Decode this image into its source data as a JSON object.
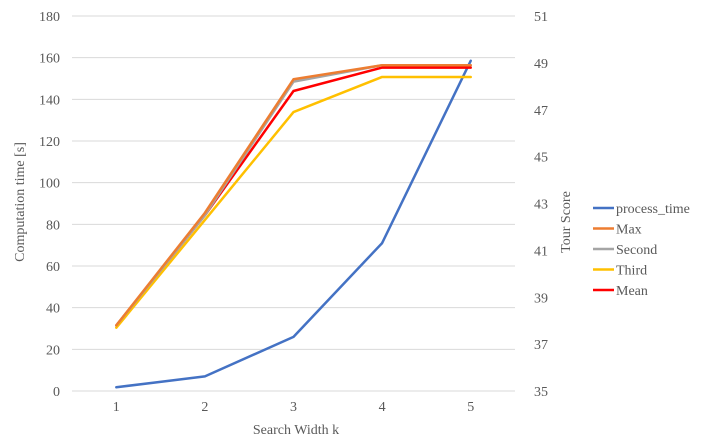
{
  "chart_data": {
    "type": "line",
    "x": [
      1,
      2,
      3,
      4,
      5
    ],
    "xlabel": "Search Width k",
    "ylabel_left": "Computation time [s]",
    "ylabel_right": "Tour Score",
    "ylim_left": [
      0,
      180
    ],
    "ylim_right": [
      35,
      51
    ],
    "yticks_left": [
      0,
      20,
      40,
      60,
      80,
      100,
      120,
      140,
      160,
      180
    ],
    "yticks_right": [
      35,
      37,
      39,
      41,
      43,
      45,
      47,
      49,
      51
    ],
    "grid": true,
    "legend_position": "right",
    "series": [
      {
        "name": "process_time",
        "axis": "left",
        "color": "#4472c4",
        "values": [
          1.8,
          7.0,
          26.0,
          71.0,
          158.5
        ]
      },
      {
        "name": "Max",
        "axis": "right",
        "color": "#ed7d31",
        "values": [
          37.8,
          42.6,
          48.3,
          48.9,
          48.9
        ]
      },
      {
        "name": "Second",
        "axis": "right",
        "color": "#a5a5a5",
        "values": [
          37.8,
          42.5,
          48.2,
          48.9,
          48.9
        ]
      },
      {
        "name": "Third",
        "axis": "right",
        "color": "#ffc000",
        "values": [
          37.7,
          42.3,
          46.9,
          48.4,
          48.4
        ]
      },
      {
        "name": "Mean",
        "axis": "right",
        "color": "#ff0000",
        "values": [
          37.8,
          42.5,
          47.8,
          48.8,
          48.8
        ]
      }
    ]
  }
}
